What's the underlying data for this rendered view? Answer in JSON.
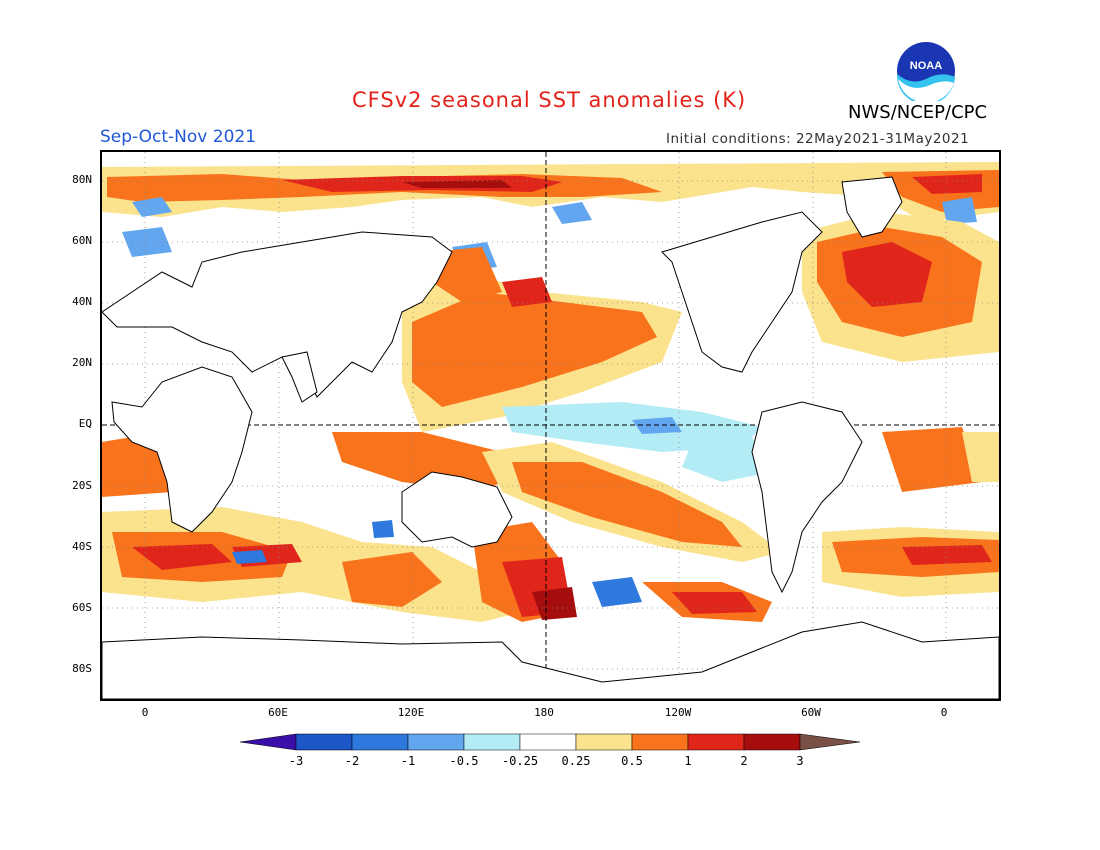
{
  "title": "CFSv2 seasonal SST anomalies (K)",
  "season": "Sep-Oct-Nov 2021",
  "agency": "NWS/NCEP/CPC",
  "initial_conditions": "Initial conditions: 22May2021-31May2021",
  "logo_text": "NOAA",
  "lat_labels": [
    "80N",
    "60N",
    "40N",
    "20N",
    "EQ",
    "20S",
    "40S",
    "60S",
    "80S"
  ],
  "lon_labels": [
    "0",
    "60E",
    "120E",
    "180",
    "120W",
    "60W",
    "0"
  ],
  "legend": {
    "labels": [
      "-3",
      "-2",
      "-1",
      "-0.5",
      "-0.25",
      "0.25",
      "0.5",
      "1",
      "2",
      "3"
    ],
    "colors": [
      "#3a0ea8",
      "#1c56c7",
      "#2f78dd",
      "#61a6ee",
      "#b4ecf6",
      "#ffffff",
      "#fbe28c",
      "#f9731c",
      "#e0261a",
      "#a60d0d",
      "#7a4f46"
    ]
  },
  "colors": {
    "title": "#e3231b",
    "season": "#1f57d6"
  }
}
